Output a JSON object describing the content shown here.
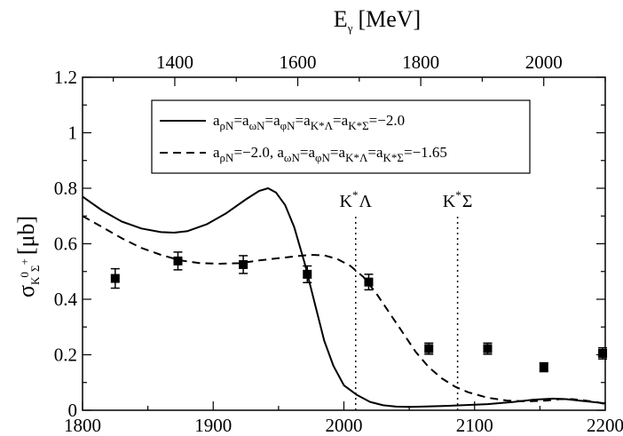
{
  "chart_data": {
    "type": "line",
    "x_bottom": {
      "range": [
        1800,
        2200
      ],
      "ticks": [
        1800,
        1900,
        2000,
        2100,
        2200
      ]
    },
    "x_top": {
      "label": "E",
      "label_sub": "γ",
      "unit": "[MeV]",
      "range": [
        1250,
        2100
      ],
      "ticks": [
        1400,
        1600,
        1800,
        2000
      ]
    },
    "y": {
      "label": "σ",
      "label_sub": "K",
      "label_sub_sup": "0",
      "label_sub2": "Σ",
      "label_sub2_sup": "+",
      "unit": "[μb]",
      "range": [
        0,
        1.2
      ],
      "ticks": [
        "0",
        "0.2",
        "0.4",
        "0.6",
        "0.8",
        "1",
        "1.2"
      ]
    },
    "legend": {
      "entries": [
        {
          "style": "solid",
          "text": "a_{ρN}=a_{ωN}=a_{φN}=a_{K*Λ}=a_{K*Σ}=−2.0"
        },
        {
          "style": "dashed",
          "text": "a_{ρN}=−2.0,  a_{ωN}=a_{φN}=a_{K*Λ}=a_{K*Σ}=−1.65"
        }
      ]
    },
    "thresholds": [
      {
        "x": 2009,
        "label": "K",
        "label_sup": "*",
        "label_after": "Λ"
      },
      {
        "x": 2087,
        "label": "K",
        "label_sup": "*",
        "label_after": "Σ"
      }
    ],
    "series": [
      {
        "style": "solid",
        "x": [
          1800,
          1815,
          1830,
          1845,
          1860,
          1870,
          1880,
          1895,
          1910,
          1925,
          1935,
          1942,
          1948,
          1955,
          1962,
          1970,
          1978,
          1985,
          1992,
          2000,
          2010,
          2020,
          2030,
          2040,
          2050,
          2060,
          2075,
          2090,
          2110,
          2130,
          2145,
          2160,
          2170,
          2180,
          2190,
          2200
        ],
        "y": [
          0.77,
          0.72,
          0.68,
          0.655,
          0.642,
          0.64,
          0.645,
          0.67,
          0.71,
          0.76,
          0.79,
          0.8,
          0.785,
          0.74,
          0.66,
          0.53,
          0.38,
          0.25,
          0.16,
          0.09,
          0.055,
          0.03,
          0.018,
          0.013,
          0.012,
          0.013,
          0.015,
          0.018,
          0.022,
          0.03,
          0.038,
          0.042,
          0.04,
          0.035,
          0.03,
          0.025
        ]
      },
      {
        "style": "dashed",
        "x": [
          1800,
          1815,
          1830,
          1845,
          1860,
          1875,
          1890,
          1905,
          1920,
          1935,
          1950,
          1965,
          1975,
          1985,
          1995,
          2005,
          2015,
          2025,
          2035,
          2045,
          2055,
          2065,
          2075,
          2085,
          2095,
          2110,
          2125,
          2140,
          2155,
          2165,
          2175,
          2185,
          2195,
          2200
        ],
        "y": [
          0.7,
          0.66,
          0.62,
          0.585,
          0.56,
          0.54,
          0.53,
          0.528,
          0.53,
          0.54,
          0.548,
          0.556,
          0.56,
          0.558,
          0.545,
          0.52,
          0.48,
          0.42,
          0.35,
          0.28,
          0.21,
          0.155,
          0.115,
          0.085,
          0.065,
          0.045,
          0.035,
          0.032,
          0.035,
          0.04,
          0.04,
          0.035,
          0.028,
          0.022
        ]
      }
    ],
    "data_points": {
      "x": [
        1825,
        1873,
        1923,
        1972,
        2019,
        2065,
        2110,
        2153,
        2198
      ],
      "y": [
        0.475,
        0.538,
        0.525,
        0.49,
        0.462,
        0.222,
        0.222,
        0.155,
        0.205
      ],
      "err": [
        0.035,
        0.032,
        0.032,
        0.03,
        0.028,
        0.02,
        0.02,
        0.016,
        0.02
      ]
    }
  }
}
